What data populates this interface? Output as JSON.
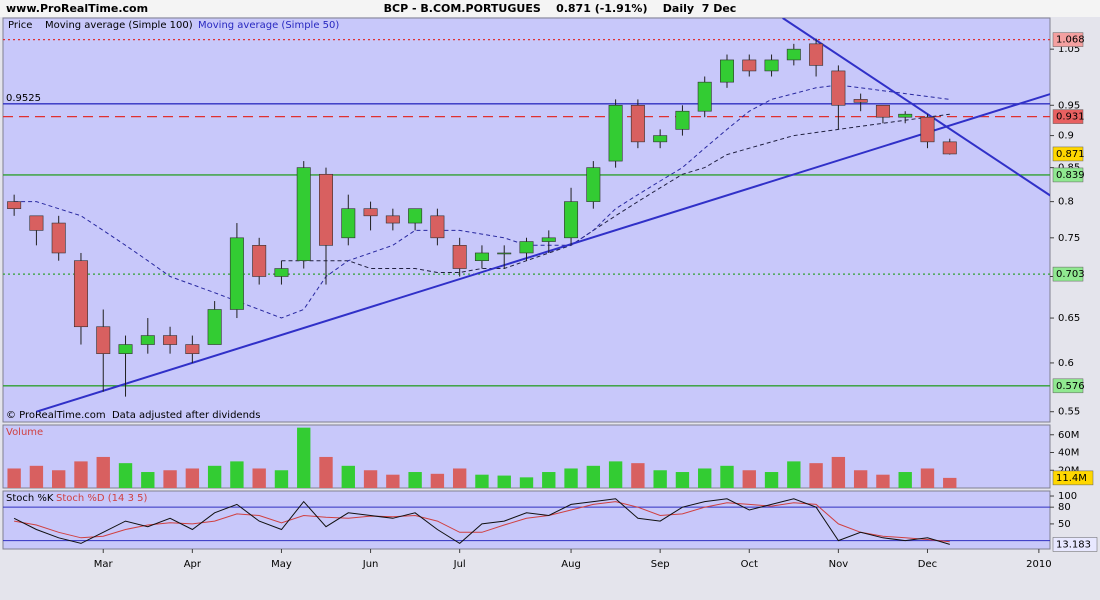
{
  "chart_data": {
    "type": "candlestick",
    "site": "www.ProRealTime.com",
    "title": "BCP - B.COM.PORTUGUES    0.871 (-1.91%)    Daily  7 Dec",
    "price_label": "Price",
    "footnote": "© ProRealTime.com  Data adjusted after dividends",
    "categories": [
      null,
      null,
      null,
      null,
      "Mar",
      null,
      null,
      null,
      "Apr",
      null,
      null,
      null,
      "May",
      null,
      null,
      null,
      "Jun",
      null,
      null,
      null,
      "Jul",
      null,
      null,
      null,
      null,
      "Aug",
      null,
      null,
      null,
      "Sep",
      null,
      null,
      null,
      "Oct",
      null,
      null,
      null,
      "Nov",
      null,
      null,
      null,
      "Dec",
      null,
      null,
      null,
      null,
      "2010"
    ],
    "open": [
      0.8,
      0.78,
      0.77,
      0.72,
      0.64,
      0.61,
      0.62,
      0.63,
      0.62,
      0.62,
      0.66,
      0.74,
      0.7,
      0.72,
      0.84,
      0.75,
      0.79,
      0.78,
      0.77,
      0.78,
      0.74,
      0.72,
      0.73,
      0.73,
      0.745,
      0.75,
      0.8,
      0.86,
      0.95,
      0.89,
      0.91,
      0.94,
      0.99,
      1.03,
      1.01,
      1.03,
      1.06,
      1.01,
      0.96,
      0.95,
      0.93,
      0.93,
      0.89,
      null,
      null,
      null,
      null
    ],
    "high": [
      0.81,
      0.78,
      0.78,
      0.73,
      0.66,
      0.63,
      0.65,
      0.64,
      0.63,
      0.67,
      0.77,
      0.75,
      0.72,
      0.86,
      0.85,
      0.81,
      0.8,
      0.79,
      0.79,
      0.79,
      0.75,
      0.74,
      0.74,
      0.75,
      0.76,
      0.82,
      0.86,
      0.96,
      0.96,
      0.91,
      0.95,
      1.0,
      1.04,
      1.04,
      1.04,
      1.06,
      1.07,
      1.02,
      0.97,
      0.95,
      0.94,
      0.935,
      0.895,
      null,
      null,
      null,
      null
    ],
    "low": [
      0.78,
      0.74,
      0.72,
      0.62,
      0.57,
      0.565,
      0.61,
      0.61,
      0.6,
      0.62,
      0.65,
      0.69,
      0.69,
      0.71,
      0.69,
      0.74,
      0.76,
      0.76,
      0.76,
      0.74,
      0.7,
      0.71,
      0.71,
      0.72,
      0.73,
      0.74,
      0.79,
      0.85,
      0.88,
      0.88,
      0.9,
      0.93,
      0.98,
      1.0,
      1.0,
      1.02,
      1.0,
      0.91,
      0.94,
      0.92,
      0.92,
      0.88,
      0.87,
      null,
      null,
      null,
      null
    ],
    "close": [
      0.79,
      0.76,
      0.73,
      0.64,
      0.61,
      0.62,
      0.63,
      0.62,
      0.61,
      0.66,
      0.75,
      0.7,
      0.71,
      0.85,
      0.74,
      0.79,
      0.78,
      0.77,
      0.79,
      0.75,
      0.71,
      0.73,
      0.73,
      0.745,
      0.75,
      0.8,
      0.85,
      0.95,
      0.89,
      0.9,
      0.94,
      0.99,
      1.03,
      1.01,
      1.03,
      1.05,
      1.02,
      0.95,
      0.955,
      0.93,
      0.935,
      0.89,
      0.871,
      null,
      null,
      null,
      null
    ],
    "up_color": "#33cc33",
    "down_color": "#d86060",
    "series": [
      {
        "name": "Moving average (Simple 100)",
        "color": "#202040",
        "dash": true,
        "values": [
          null,
          null,
          null,
          null,
          null,
          null,
          null,
          null,
          null,
          null,
          null,
          null,
          0.72,
          0.72,
          0.72,
          0.72,
          0.71,
          0.71,
          0.71,
          0.705,
          0.705,
          0.71,
          0.71,
          0.72,
          0.73,
          0.74,
          0.76,
          0.78,
          0.8,
          0.82,
          0.84,
          0.85,
          0.87,
          0.88,
          0.89,
          0.9,
          0.905,
          0.91,
          0.915,
          0.92,
          0.925,
          0.93,
          0.935,
          null,
          null,
          null,
          null
        ]
      },
      {
        "name": "Moving average (Simple 50)",
        "color": "#2828a0",
        "dash": true,
        "values": [
          0.8,
          0.8,
          0.79,
          0.78,
          0.76,
          0.74,
          0.72,
          0.7,
          0.69,
          0.68,
          0.67,
          0.66,
          0.65,
          0.66,
          0.7,
          0.72,
          0.73,
          0.74,
          0.76,
          0.76,
          0.76,
          0.755,
          0.75,
          0.74,
          0.74,
          0.74,
          0.76,
          0.79,
          0.81,
          0.83,
          0.85,
          0.88,
          0.91,
          0.94,
          0.96,
          0.97,
          0.98,
          0.985,
          0.98,
          0.975,
          0.97,
          0.965,
          0.96,
          null,
          null,
          null,
          null
        ]
      }
    ],
    "log_scale": true,
    "ylim": [
      0.54,
      1.11
    ],
    "yticks": [
      0.55,
      0.6,
      0.65,
      0.7,
      0.75,
      0.8,
      0.85,
      0.9,
      0.95,
      1.05
    ],
    "levels": [
      {
        "value": 1.068,
        "color": "#e03030",
        "style": "dotted",
        "box": "#f4a0a0"
      },
      {
        "value": 0.9525,
        "color": "#3030c0",
        "style": "solid",
        "label_left": true
      },
      {
        "value": 0.931,
        "color": "#e03030",
        "style": "dashed",
        "box": "#e86060"
      },
      {
        "value": 0.871,
        "box": "#ffd700"
      },
      {
        "value": 0.839,
        "color": "#30a030",
        "style": "solid",
        "box": "#90e890"
      },
      {
        "value": 0.703,
        "color": "#30a030",
        "style": "dotted",
        "box": "#90e890"
      },
      {
        "value": 0.576,
        "color": "#30a030",
        "style": "solid",
        "box": "#90e890"
      }
    ],
    "trendlines": [
      {
        "x": [
          1,
          47.4
        ],
        "y": [
          0.55,
          0.98
        ],
        "color": "#3030c8"
      },
      {
        "x": [
          34.5,
          47.4
        ],
        "y": [
          1.11,
          0.79
        ],
        "color": "#3030c8"
      }
    ],
    "volume": {
      "title": "Volume",
      "color_title": "#d04040",
      "values": [
        22,
        25,
        20,
        30,
        35,
        28,
        18,
        20,
        22,
        25,
        30,
        22,
        20,
        68,
        35,
        25,
        20,
        15,
        18,
        16,
        22,
        15,
        14,
        12,
        18,
        22,
        25,
        30,
        28,
        20,
        18,
        22,
        25,
        20,
        18,
        30,
        28,
        35,
        20,
        15,
        18,
        22,
        11.4,
        null,
        null,
        null,
        null
      ],
      "ylim": [
        0,
        71
      ],
      "yticks": [
        {
          "value": 20,
          "label": "20M"
        },
        {
          "value": 40,
          "label": "40M"
        },
        {
          "value": 60,
          "label": "60M"
        }
      ],
      "last": {
        "value": 11.4,
        "label": "11.4M"
      }
    },
    "stoch": {
      "series": [
        {
          "name": "Stoch %K",
          "color": "#101010",
          "values": [
            60,
            40,
            25,
            15,
            35,
            55,
            45,
            60,
            40,
            70,
            85,
            55,
            40,
            90,
            45,
            70,
            65,
            60,
            70,
            40,
            15,
            50,
            55,
            70,
            65,
            85,
            90,
            95,
            60,
            55,
            80,
            90,
            95,
            75,
            85,
            95,
            80,
            20,
            35,
            25,
            20,
            25,
            13.183,
            null,
            null,
            null,
            null
          ]
        },
        {
          "name": "Stoch %D (14 3 5)",
          "color": "#d04040",
          "values": [
            55,
            48,
            35,
            25,
            28,
            40,
            48,
            52,
            50,
            55,
            68,
            65,
            52,
            65,
            62,
            60,
            64,
            63,
            65,
            55,
            35,
            35,
            48,
            60,
            65,
            75,
            85,
            90,
            80,
            65,
            68,
            80,
            88,
            85,
            82,
            88,
            85,
            50,
            35,
            28,
            25,
            22,
            18,
            null,
            null,
            null,
            null
          ]
        }
      ],
      "ylim": [
        5,
        109
      ],
      "yticks": [
        50,
        80,
        100
      ],
      "levels": [
        20,
        80
      ]
    }
  }
}
